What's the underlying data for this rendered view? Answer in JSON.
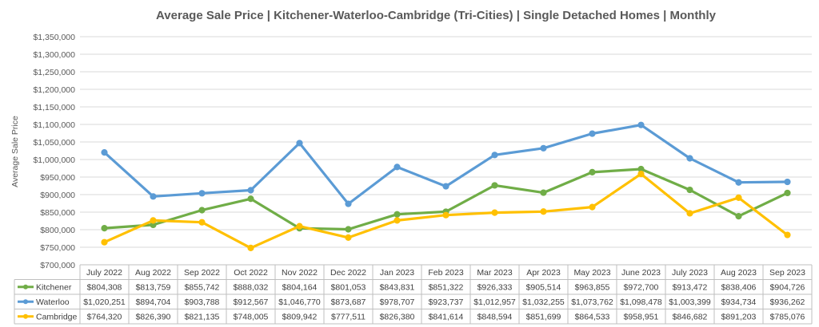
{
  "chart_data": {
    "type": "line",
    "title": "Average Sale Price | Kitchener-Waterloo-Cambridge (Tri-Cities) | Single Detached Homes | Monthly",
    "ylabel": "Average Sale Price",
    "xlabel": "",
    "ylim": [
      700000,
      1350000
    ],
    "ytick_step": 50000,
    "y_tick_labels": [
      "$700,000",
      "$750,000",
      "$800,000",
      "$850,000",
      "$900,000",
      "$950,000",
      "$1,000,000",
      "$1,050,000",
      "$1,100,000",
      "$1,150,000",
      "$1,200,000",
      "$1,250,000",
      "$1,300,000",
      "$1,350,000"
    ],
    "grid": true,
    "legend": "data-table",
    "categories": [
      "July 2022",
      "Aug 2022",
      "Sep 2022",
      "Oct 2022",
      "Nov 2022",
      "Dec 2022",
      "Jan 2023",
      "Feb 2023",
      "Mar 2023",
      "Apr 2023",
      "May 2023",
      "June 2023",
      "July 2023",
      "Aug 2023",
      "Sep 2023"
    ],
    "series": [
      {
        "name": "Kitchener",
        "color": "#70ad47",
        "values": [
          804308,
          813759,
          855742,
          888032,
          804164,
          801053,
          843831,
          851322,
          926333,
          905514,
          963855,
          972700,
          913472,
          838406,
          904726
        ],
        "labels": [
          "$804,308",
          "$813,759",
          "$855,742",
          "$888,032",
          "$804,164",
          "$801,053",
          "$843,831",
          "$851,322",
          "$926,333",
          "$905,514",
          "$963,855",
          "$972,700",
          "$913,472",
          "$838,406",
          "$904,726"
        ]
      },
      {
        "name": "Waterloo",
        "color": "#5b9bd5",
        "values": [
          1020251,
          894704,
          903788,
          912567,
          1046770,
          873687,
          978707,
          923737,
          1012957,
          1032255,
          1073762,
          1098478,
          1003399,
          934734,
          936262
        ],
        "labels": [
          "$1,020,251",
          "$894,704",
          "$903,788",
          "$912,567",
          "$1,046,770",
          "$873,687",
          "$978,707",
          "$923,737",
          "$1,012,957",
          "$1,032,255",
          "$1,073,762",
          "$1,098,478",
          "$1,003,399",
          "$934,734",
          "$936,262"
        ]
      },
      {
        "name": "Cambridge",
        "color": "#ffc000",
        "values": [
          764320,
          826390,
          821135,
          748005,
          809942,
          777511,
          826380,
          841614,
          848594,
          851699,
          864533,
          958951,
          846682,
          891203,
          785076
        ],
        "labels": [
          "$764,320",
          "$826,390",
          "$821,135",
          "$748,005",
          "$809,942",
          "$777,511",
          "$826,380",
          "$841,614",
          "$848,594",
          "$851,699",
          "$864,533",
          "$958,951",
          "$846,682",
          "$891,203",
          "$785,076"
        ]
      }
    ]
  }
}
